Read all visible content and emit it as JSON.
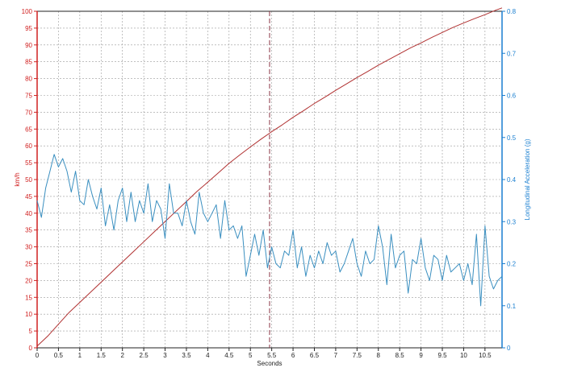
{
  "chart_data": {
    "type": "line",
    "xlabel": "Seconds",
    "ylabel_left": "km/h",
    "ylabel_right": "Longitudinal Acceleration (g)",
    "xlim": [
      0,
      10.9
    ],
    "ylim_left": [
      0,
      100
    ],
    "ylim_right": [
      0,
      0.8
    ],
    "x_ticks": [
      "0",
      "0.5",
      "1",
      "1.5",
      "2",
      "2.5",
      "3",
      "3.5",
      "4",
      "4.5",
      "5",
      "5.5",
      "6",
      "6.5",
      "7",
      "7.5",
      "8",
      "8.5",
      "9",
      "9.5",
      "10",
      "10.5"
    ],
    "y_ticks_left": [
      "0",
      "5",
      "10",
      "15",
      "20",
      "25",
      "30",
      "35",
      "40",
      "45",
      "50",
      "55",
      "60",
      "65",
      "70",
      "75",
      "80",
      "85",
      "90",
      "95",
      "100"
    ],
    "y_ticks_right": [
      "0",
      "0.1",
      "0.2",
      "0.3",
      "0.4",
      "0.5",
      "0.6",
      "0.7",
      "0.8"
    ],
    "grid": true,
    "marker_x": 5.45,
    "colors": {
      "speed": "#b03030",
      "accel": "#3a8fc0",
      "left_axis": "#d02020",
      "right_axis": "#1a7fd0",
      "grid": "#9a9a9a",
      "marker": "#8a3040"
    },
    "series": [
      {
        "axis": "left",
        "x": [
          0,
          0.25,
          0.5,
          0.75,
          1,
          1.25,
          1.5,
          1.75,
          2,
          2.25,
          2.5,
          2.75,
          3,
          3.25,
          3.5,
          3.75,
          4,
          4.25,
          4.5,
          4.75,
          5,
          5.25,
          5.5,
          5.75,
          6,
          6.25,
          6.5,
          6.75,
          7,
          7.25,
          7.5,
          7.75,
          8,
          8.25,
          8.5,
          8.75,
          9,
          9.25,
          9.5,
          9.75,
          10,
          10.25,
          10.5,
          10.75,
          10.9
        ],
        "values": [
          0.5,
          3.5,
          7,
          10.5,
          13.5,
          16.5,
          19.5,
          22.5,
          25.5,
          28.5,
          31.5,
          34.5,
          37.5,
          40.5,
          43.5,
          46.5,
          49.2,
          52,
          54.8,
          57.3,
          59.7,
          62,
          64.2,
          66.3,
          68.5,
          70.5,
          72.6,
          74.5,
          76.5,
          78.4,
          80.3,
          82.1,
          84,
          85.7,
          87.4,
          89.1,
          90.6,
          92.2,
          93.7,
          95.2,
          96.5,
          97.8,
          99,
          100.3,
          101
        ]
      },
      {
        "axis": "right",
        "x": [
          0,
          0.1,
          0.2,
          0.3,
          0.4,
          0.5,
          0.6,
          0.7,
          0.8,
          0.9,
          1,
          1.1,
          1.2,
          1.3,
          1.4,
          1.5,
          1.6,
          1.7,
          1.8,
          1.9,
          2,
          2.1,
          2.2,
          2.3,
          2.4,
          2.5,
          2.6,
          2.7,
          2.8,
          2.9,
          3,
          3.1,
          3.2,
          3.3,
          3.4,
          3.5,
          3.6,
          3.7,
          3.8,
          3.9,
          4,
          4.1,
          4.2,
          4.3,
          4.4,
          4.5,
          4.6,
          4.7,
          4.8,
          4.9,
          5,
          5.1,
          5.2,
          5.3,
          5.4,
          5.5,
          5.6,
          5.7,
          5.8,
          5.9,
          6,
          6.1,
          6.2,
          6.3,
          6.4,
          6.5,
          6.6,
          6.7,
          6.8,
          6.9,
          7,
          7.1,
          7.2,
          7.3,
          7.4,
          7.5,
          7.6,
          7.7,
          7.8,
          7.9,
          8,
          8.1,
          8.2,
          8.3,
          8.4,
          8.5,
          8.6,
          8.7,
          8.8,
          8.9,
          9,
          9.1,
          9.2,
          9.3,
          9.4,
          9.5,
          9.6,
          9.7,
          9.8,
          9.9,
          10,
          10.1,
          10.2,
          10.3,
          10.4,
          10.5,
          10.6,
          10.7,
          10.8,
          10.9
        ],
        "values": [
          0.35,
          0.31,
          0.38,
          0.42,
          0.46,
          0.43,
          0.45,
          0.42,
          0.37,
          0.42,
          0.35,
          0.34,
          0.4,
          0.36,
          0.33,
          0.38,
          0.29,
          0.34,
          0.28,
          0.35,
          0.38,
          0.3,
          0.37,
          0.3,
          0.35,
          0.32,
          0.39,
          0.3,
          0.35,
          0.33,
          0.26,
          0.39,
          0.32,
          0.32,
          0.29,
          0.35,
          0.3,
          0.27,
          0.37,
          0.32,
          0.3,
          0.32,
          0.34,
          0.26,
          0.35,
          0.28,
          0.29,
          0.26,
          0.29,
          0.17,
          0.22,
          0.27,
          0.22,
          0.28,
          0.19,
          0.24,
          0.2,
          0.19,
          0.23,
          0.22,
          0.28,
          0.19,
          0.24,
          0.17,
          0.22,
          0.19,
          0.23,
          0.2,
          0.25,
          0.22,
          0.23,
          0.18,
          0.2,
          0.23,
          0.26,
          0.2,
          0.17,
          0.23,
          0.2,
          0.21,
          0.29,
          0.24,
          0.15,
          0.27,
          0.19,
          0.22,
          0.23,
          0.13,
          0.21,
          0.2,
          0.26,
          0.19,
          0.16,
          0.22,
          0.21,
          0.16,
          0.22,
          0.18,
          0.19,
          0.2,
          0.16,
          0.2,
          0.15,
          0.27,
          0.1,
          0.29,
          0.17,
          0.14,
          0.16,
          0.17
        ]
      }
    ]
  }
}
